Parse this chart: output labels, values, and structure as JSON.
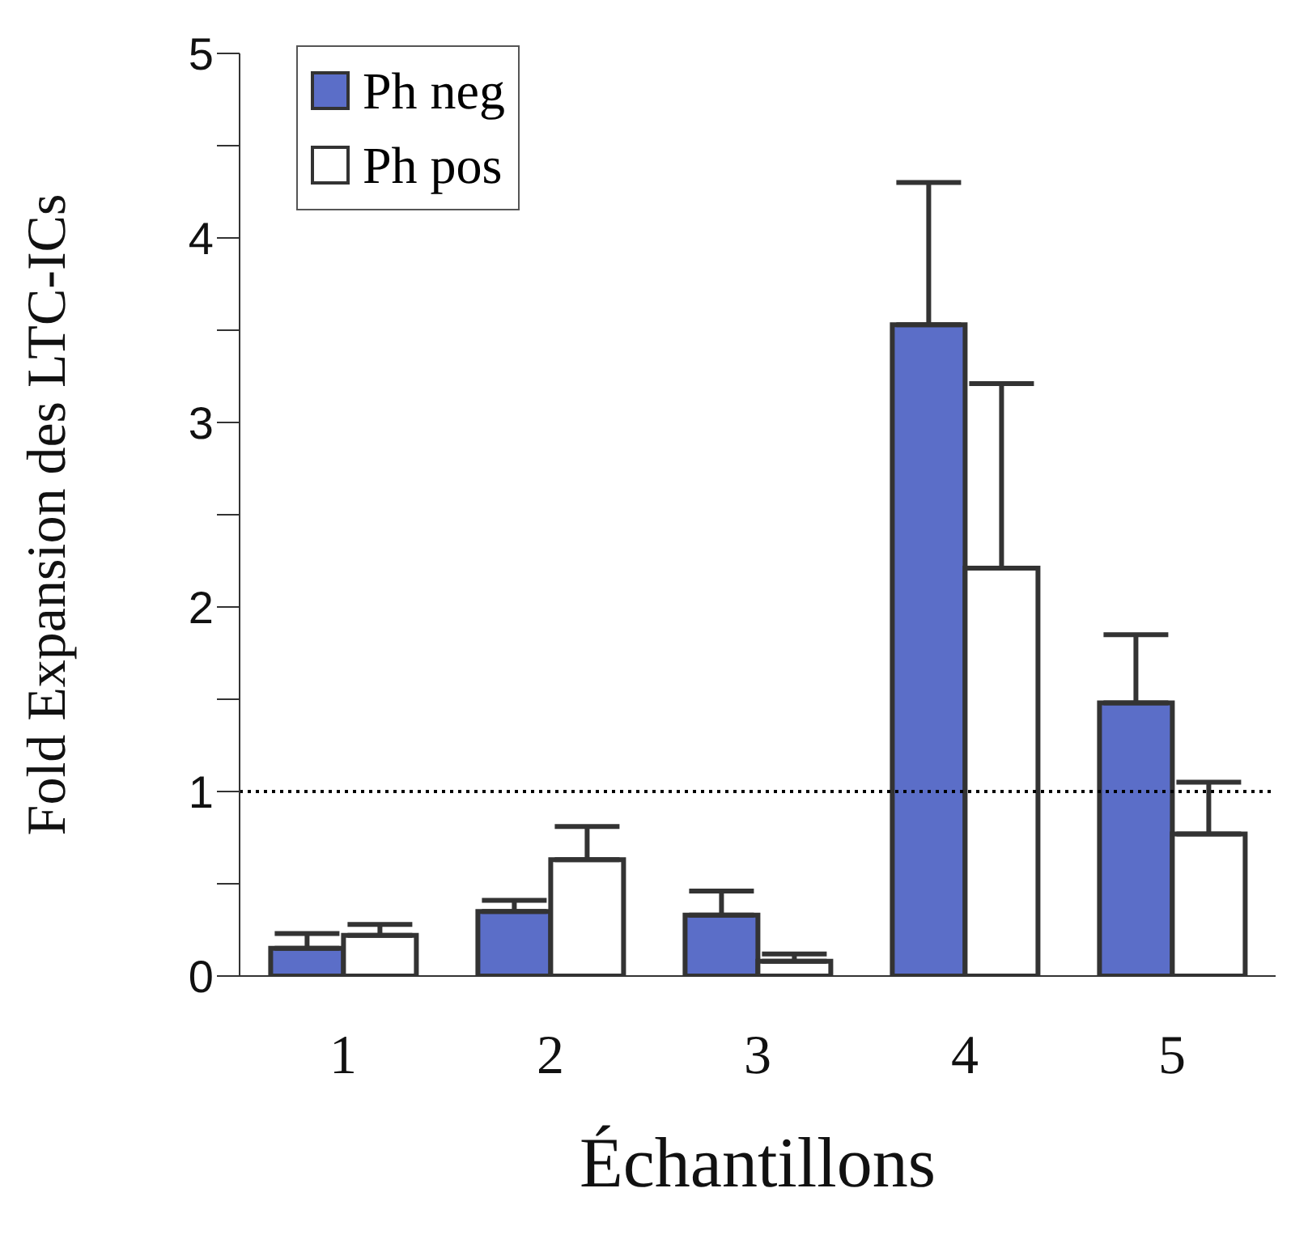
{
  "chart_data": {
    "type": "bar",
    "xlabel": "Échantillons",
    "ylabel": "Fold Expansion des LTC-ICs",
    "categories": [
      "1",
      "2",
      "3",
      "4",
      "5"
    ],
    "series": [
      {
        "name": "Ph neg",
        "color": "#5b6ec8",
        "values": [
          0.15,
          0.35,
          0.33,
          3.53,
          1.48
        ],
        "errors": [
          [
            0.15,
            0.23
          ],
          [
            0.35,
            0.41
          ],
          [
            0.33,
            0.46
          ],
          [
            3.53,
            4.3
          ],
          [
            1.48,
            1.85
          ]
        ]
      },
      {
        "name": "Ph pos",
        "color": "#ffffff",
        "values": [
          0.22,
          0.63,
          0.08,
          2.21,
          0.77
        ],
        "errors": [
          [
            0.22,
            0.28
          ],
          [
            0.63,
            0.81
          ],
          [
            0.08,
            0.12
          ],
          [
            2.21,
            3.21
          ],
          [
            0.77,
            1.05
          ]
        ]
      }
    ],
    "ylim": [
      0,
      5
    ],
    "yticks": [
      0,
      {
        "value": 0.5,
        "label": null
      },
      1,
      {
        "value": 1.5,
        "label": null
      },
      2,
      {
        "value": 2.5,
        "label": null
      },
      3,
      {
        "value": 3.5,
        "label": null
      },
      4,
      {
        "value": 4.5,
        "label": null
      },
      5
    ],
    "ref_lines": [
      {
        "axis": "y",
        "value": 1,
        "label": null,
        "line_style": "dotted",
        "color": "#000000"
      }
    ],
    "grid": false,
    "legend": "top left"
  }
}
